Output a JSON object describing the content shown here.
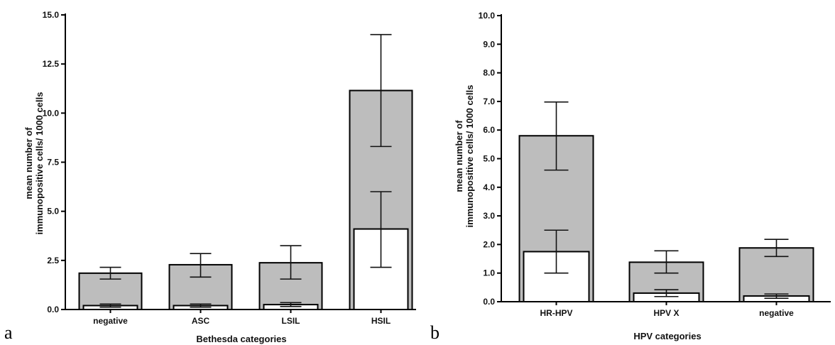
{
  "chart_data": [
    {
      "type": "bar",
      "panel_label": "a",
      "xlabel": "Bethesda categories",
      "ylabel_lines": [
        "mean number of",
        "immunopositive cells/ 1000 cells"
      ],
      "categories": [
        "negative",
        "ASC",
        "LSIL",
        "HSIL"
      ],
      "ylim": [
        0,
        15
      ],
      "yticks": [
        "0.0",
        "2.5",
        "5.0",
        "7.5",
        "10.0",
        "12.5",
        "15.0"
      ],
      "series": [
        {
          "values": [
            1.85,
            2.28,
            2.38,
            11.15
          ],
          "error_low": [
            1.55,
            1.65,
            1.55,
            8.3
          ],
          "error_high": [
            2.15,
            2.85,
            3.25,
            14.0
          ],
          "color": "#bdbdbd"
        },
        {
          "values": [
            0.2,
            0.2,
            0.25,
            4.1
          ],
          "error_low": [
            0.12,
            0.12,
            0.15,
            2.15
          ],
          "error_high": [
            0.28,
            0.28,
            0.35,
            6.0
          ],
          "color": "#ffffff"
        }
      ]
    },
    {
      "type": "bar",
      "panel_label": "b",
      "xlabel": "HPV categories",
      "ylabel_lines": [
        "mean number of",
        "immunopositive cells/ 1000 cells"
      ],
      "categories": [
        "HR-HPV",
        "HPV X",
        "negative"
      ],
      "ylim": [
        0,
        10
      ],
      "yticks": [
        "0.0",
        "1.0",
        "2.0",
        "3.0",
        "4.0",
        "5.0",
        "6.0",
        "7.0",
        "8.0",
        "9.0",
        "10.0"
      ],
      "series": [
        {
          "values": [
            5.8,
            1.38,
            1.88
          ],
          "error_low": [
            4.6,
            1.0,
            1.58
          ],
          "error_high": [
            6.98,
            1.78,
            2.18
          ],
          "color": "#bdbdbd"
        },
        {
          "values": [
            1.75,
            0.3,
            0.2
          ],
          "error_low": [
            1.0,
            0.18,
            0.12
          ],
          "error_high": [
            2.5,
            0.42,
            0.27
          ],
          "color": "#ffffff"
        }
      ]
    }
  ]
}
